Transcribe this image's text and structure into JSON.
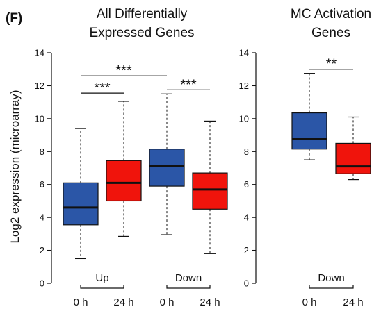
{
  "figure": {
    "panel_letter": "(F)",
    "ylabel": "Log2 expression (microarray)"
  },
  "chart_data": [
    {
      "type": "box",
      "title_lines": [
        "All Differentially",
        "Expressed Genes"
      ],
      "ylabel": "Log2 expression (microarray)",
      "ylim": [
        0,
        14
      ],
      "yticks": [
        0,
        2,
        4,
        6,
        8,
        10,
        12,
        14
      ],
      "tick_labels": [
        "0",
        "2",
        "4",
        "6",
        "8",
        "10",
        "12",
        "14"
      ],
      "groups": [
        {
          "label": "Up",
          "members": [
            0,
            1
          ]
        },
        {
          "label": "Down",
          "members": [
            2,
            3
          ]
        }
      ],
      "boxes": [
        {
          "x_label": "0 h",
          "color": "#2b56a7",
          "whisker_low": 1.5,
          "q1": 3.55,
          "median": 4.6,
          "q3": 6.1,
          "whisker_high": 9.4
        },
        {
          "x_label": "24 h",
          "color": "#f0140c",
          "whisker_low": 2.85,
          "q1": 5.0,
          "median": 6.1,
          "q3": 7.45,
          "whisker_high": 11.05
        },
        {
          "x_label": "0 h",
          "color": "#2b56a7",
          "whisker_low": 2.95,
          "q1": 5.9,
          "median": 7.15,
          "q3": 8.15,
          "whisker_high": 11.5
        },
        {
          "x_label": "24 h",
          "color": "#f0140c",
          "whisker_low": 1.8,
          "q1": 4.5,
          "median": 5.7,
          "q3": 6.7,
          "whisker_high": 9.85
        }
      ],
      "significance": [
        {
          "from": 0,
          "to": 1,
          "y": 11.55,
          "label": "***"
        },
        {
          "from": 0,
          "to": 2,
          "y": 12.6,
          "label": "***"
        },
        {
          "from": 2,
          "to": 3,
          "y": 11.75,
          "label": "***"
        }
      ]
    },
    {
      "type": "box",
      "title_lines": [
        "MC Activation",
        "Genes"
      ],
      "ylim": [
        0,
        14
      ],
      "yticks": [
        0,
        2,
        4,
        6,
        8,
        10,
        12,
        14
      ],
      "tick_labels": [
        "0",
        "2",
        "4",
        "6",
        "8",
        "10",
        "12",
        "14"
      ],
      "groups": [
        {
          "label": "Down",
          "members": [
            0,
            1
          ]
        }
      ],
      "boxes": [
        {
          "x_label": "0 h",
          "color": "#2b56a7",
          "whisker_low": 7.5,
          "q1": 8.15,
          "median": 8.75,
          "q3": 10.35,
          "whisker_high": 12.75
        },
        {
          "x_label": "24 h",
          "color": "#f0140c",
          "whisker_low": 6.3,
          "q1": 6.65,
          "median": 7.1,
          "q3": 8.5,
          "whisker_high": 10.1
        }
      ],
      "significance": [
        {
          "from": 0,
          "to": 1,
          "y": 13.0,
          "label": "**"
        }
      ]
    }
  ]
}
